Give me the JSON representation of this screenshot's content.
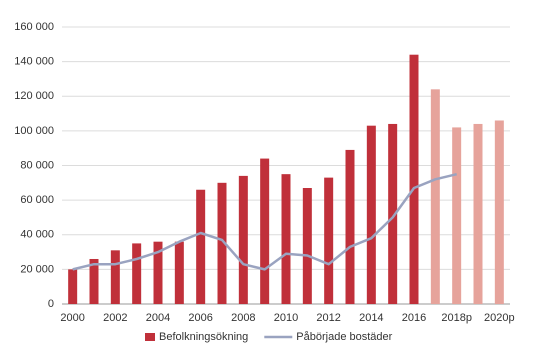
{
  "chart_data": {
    "type": "combo",
    "categories": [
      "2000",
      null,
      "2002",
      null,
      "2004",
      null,
      "2006",
      null,
      "2008",
      null,
      "2010",
      null,
      "2012",
      null,
      "2014",
      null,
      "2016",
      null,
      "2018p",
      null,
      "2020p"
    ],
    "series": [
      {
        "name": "Befolkningsökning",
        "type": "bar",
        "color": "#c0303a",
        "colors": [
          "#c0303a",
          "#c0303a",
          "#c0303a",
          "#c0303a",
          "#c0303a",
          "#c0303a",
          "#c0303a",
          "#c0303a",
          "#c0303a",
          "#c0303a",
          "#c0303a",
          "#c0303a",
          "#c0303a",
          "#c0303a",
          "#c0303a",
          "#c0303a",
          "#c0303a",
          "#e6a39b",
          "#e6a39b",
          "#e6a39b",
          "#e6a39b"
        ],
        "values": [
          20000,
          26000,
          31000,
          35000,
          36000,
          36000,
          66000,
          70000,
          74000,
          84000,
          75000,
          67000,
          73000,
          89000,
          103000,
          104000,
          144000,
          124000,
          102000,
          104000,
          106000
        ]
      },
      {
        "name": "Påbörjade bostäder",
        "type": "line",
        "color": "#9aa3c0",
        "values": [
          20000,
          23000,
          23000,
          26000,
          30000,
          36000,
          41000,
          37000,
          23000,
          20000,
          29000,
          28000,
          23000,
          33000,
          38000,
          50000,
          67000,
          72000,
          75000,
          null,
          null
        ]
      }
    ],
    "ylim": [
      0,
      160000
    ],
    "yticks": [
      {
        "value": 0,
        "label": "0"
      },
      {
        "value": 20000,
        "label": "20 000"
      },
      {
        "value": 40000,
        "label": "40 000"
      },
      {
        "value": 60000,
        "label": "60 000"
      },
      {
        "value": 80000,
        "label": "80 000"
      },
      {
        "value": 100000,
        "label": "100 000"
      },
      {
        "value": 120000,
        "label": "120 000"
      },
      {
        "value": 140000,
        "label": "140 000"
      },
      {
        "value": 160000,
        "label": "160 000"
      }
    ],
    "grid": true
  }
}
